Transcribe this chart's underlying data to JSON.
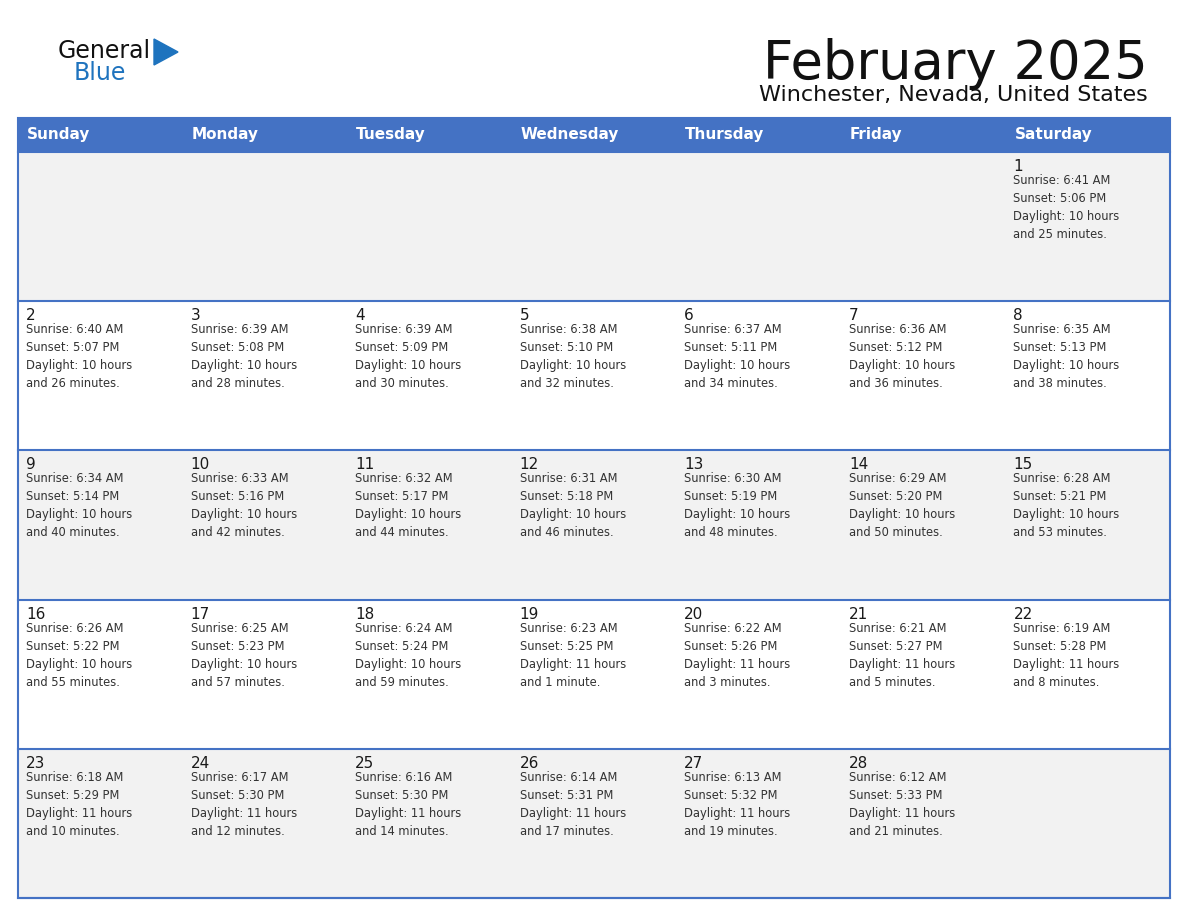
{
  "title": "February 2025",
  "subtitle": "Winchester, Nevada, United States",
  "header_bg": "#4472C4",
  "header_text_color": "#FFFFFF",
  "cell_bg_light": "#F2F2F2",
  "cell_bg_white": "#FFFFFF",
  "border_color": "#4472C4",
  "text_color": "#1a1a1a",
  "info_color": "#333333",
  "day_names": [
    "Sunday",
    "Monday",
    "Tuesday",
    "Wednesday",
    "Thursday",
    "Friday",
    "Saturday"
  ],
  "logo_general_color": "#111111",
  "logo_blue_color": "#1e73be",
  "logo_triangle_color": "#1e73be",
  "weeks": [
    [
      {
        "day": null,
        "info": null
      },
      {
        "day": null,
        "info": null
      },
      {
        "day": null,
        "info": null
      },
      {
        "day": null,
        "info": null
      },
      {
        "day": null,
        "info": null
      },
      {
        "day": null,
        "info": null
      },
      {
        "day": 1,
        "info": "Sunrise: 6:41 AM\nSunset: 5:06 PM\nDaylight: 10 hours\nand 25 minutes."
      }
    ],
    [
      {
        "day": 2,
        "info": "Sunrise: 6:40 AM\nSunset: 5:07 PM\nDaylight: 10 hours\nand 26 minutes."
      },
      {
        "day": 3,
        "info": "Sunrise: 6:39 AM\nSunset: 5:08 PM\nDaylight: 10 hours\nand 28 minutes."
      },
      {
        "day": 4,
        "info": "Sunrise: 6:39 AM\nSunset: 5:09 PM\nDaylight: 10 hours\nand 30 minutes."
      },
      {
        "day": 5,
        "info": "Sunrise: 6:38 AM\nSunset: 5:10 PM\nDaylight: 10 hours\nand 32 minutes."
      },
      {
        "day": 6,
        "info": "Sunrise: 6:37 AM\nSunset: 5:11 PM\nDaylight: 10 hours\nand 34 minutes."
      },
      {
        "day": 7,
        "info": "Sunrise: 6:36 AM\nSunset: 5:12 PM\nDaylight: 10 hours\nand 36 minutes."
      },
      {
        "day": 8,
        "info": "Sunrise: 6:35 AM\nSunset: 5:13 PM\nDaylight: 10 hours\nand 38 minutes."
      }
    ],
    [
      {
        "day": 9,
        "info": "Sunrise: 6:34 AM\nSunset: 5:14 PM\nDaylight: 10 hours\nand 40 minutes."
      },
      {
        "day": 10,
        "info": "Sunrise: 6:33 AM\nSunset: 5:16 PM\nDaylight: 10 hours\nand 42 minutes."
      },
      {
        "day": 11,
        "info": "Sunrise: 6:32 AM\nSunset: 5:17 PM\nDaylight: 10 hours\nand 44 minutes."
      },
      {
        "day": 12,
        "info": "Sunrise: 6:31 AM\nSunset: 5:18 PM\nDaylight: 10 hours\nand 46 minutes."
      },
      {
        "day": 13,
        "info": "Sunrise: 6:30 AM\nSunset: 5:19 PM\nDaylight: 10 hours\nand 48 minutes."
      },
      {
        "day": 14,
        "info": "Sunrise: 6:29 AM\nSunset: 5:20 PM\nDaylight: 10 hours\nand 50 minutes."
      },
      {
        "day": 15,
        "info": "Sunrise: 6:28 AM\nSunset: 5:21 PM\nDaylight: 10 hours\nand 53 minutes."
      }
    ],
    [
      {
        "day": 16,
        "info": "Sunrise: 6:26 AM\nSunset: 5:22 PM\nDaylight: 10 hours\nand 55 minutes."
      },
      {
        "day": 17,
        "info": "Sunrise: 6:25 AM\nSunset: 5:23 PM\nDaylight: 10 hours\nand 57 minutes."
      },
      {
        "day": 18,
        "info": "Sunrise: 6:24 AM\nSunset: 5:24 PM\nDaylight: 10 hours\nand 59 minutes."
      },
      {
        "day": 19,
        "info": "Sunrise: 6:23 AM\nSunset: 5:25 PM\nDaylight: 11 hours\nand 1 minute."
      },
      {
        "day": 20,
        "info": "Sunrise: 6:22 AM\nSunset: 5:26 PM\nDaylight: 11 hours\nand 3 minutes."
      },
      {
        "day": 21,
        "info": "Sunrise: 6:21 AM\nSunset: 5:27 PM\nDaylight: 11 hours\nand 5 minutes."
      },
      {
        "day": 22,
        "info": "Sunrise: 6:19 AM\nSunset: 5:28 PM\nDaylight: 11 hours\nand 8 minutes."
      }
    ],
    [
      {
        "day": 23,
        "info": "Sunrise: 6:18 AM\nSunset: 5:29 PM\nDaylight: 11 hours\nand 10 minutes."
      },
      {
        "day": 24,
        "info": "Sunrise: 6:17 AM\nSunset: 5:30 PM\nDaylight: 11 hours\nand 12 minutes."
      },
      {
        "day": 25,
        "info": "Sunrise: 6:16 AM\nSunset: 5:30 PM\nDaylight: 11 hours\nand 14 minutes."
      },
      {
        "day": 26,
        "info": "Sunrise: 6:14 AM\nSunset: 5:31 PM\nDaylight: 11 hours\nand 17 minutes."
      },
      {
        "day": 27,
        "info": "Sunrise: 6:13 AM\nSunset: 5:32 PM\nDaylight: 11 hours\nand 19 minutes."
      },
      {
        "day": 28,
        "info": "Sunrise: 6:12 AM\nSunset: 5:33 PM\nDaylight: 11 hours\nand 21 minutes."
      },
      {
        "day": null,
        "info": null
      }
    ]
  ]
}
